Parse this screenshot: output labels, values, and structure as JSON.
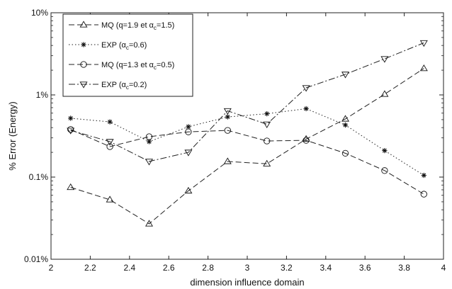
{
  "chart_data": {
    "type": "line",
    "title": "",
    "xlabel": "dimension influence domain",
    "ylabel": "% Error (Energy)",
    "xlim": [
      2,
      4
    ],
    "ylim": [
      0.01,
      10
    ],
    "y_scale": "log",
    "grid": false,
    "legend_position": "top-left",
    "x_ticks": [
      2,
      2.2,
      2.4,
      2.6,
      2.8,
      3,
      3.2,
      3.4,
      3.6,
      3.8,
      4
    ],
    "x_tick_labels": [
      "2",
      "2.2",
      "2.4",
      "2.6",
      "2.8",
      "3",
      "3.2",
      "3.4",
      "3.6",
      "3.8",
      "4"
    ],
    "y_ticks": [
      0.01,
      0.1,
      1,
      10
    ],
    "y_tick_labels": [
      "0.01%",
      "0.1%",
      "1%",
      "10%"
    ],
    "x": [
      2.1,
      2.3,
      2.5,
      2.7,
      2.9,
      3.1,
      3.3,
      3.5,
      3.7,
      3.9
    ],
    "series": [
      {
        "name_pre": "MQ (q=1.9 et α",
        "name_sub": "c",
        "name_post": "=1.5)",
        "marker": "triangle-up",
        "dash": "8,4",
        "values": [
          0.075,
          0.053,
          0.027,
          0.068,
          0.155,
          0.145,
          0.29,
          0.51,
          1.02,
          2.1
        ]
      },
      {
        "name_pre": "EXP (α",
        "name_sub": "c",
        "name_post": "=0.6)",
        "marker": "star",
        "dash": "1.5,3",
        "values": [
          0.52,
          0.47,
          0.27,
          0.41,
          0.54,
          0.59,
          0.68,
          0.43,
          0.21,
          0.105
        ]
      },
      {
        "name_pre": "MQ (q=1.3 et α",
        "name_sub": "c",
        "name_post": "=0.5)",
        "marker": "circle",
        "dash": "8,4",
        "values": [
          0.38,
          0.235,
          0.31,
          0.355,
          0.37,
          0.275,
          0.28,
          0.195,
          0.12,
          0.062
        ]
      },
      {
        "name_pre": "EXP (α",
        "name_sub": "c",
        "name_post": "=0.2)",
        "marker": "triangle-down",
        "dash": "9,3,2,3",
        "values": [
          0.37,
          0.27,
          0.155,
          0.2,
          0.64,
          0.44,
          1.22,
          1.78,
          2.75,
          4.3
        ]
      }
    ]
  }
}
